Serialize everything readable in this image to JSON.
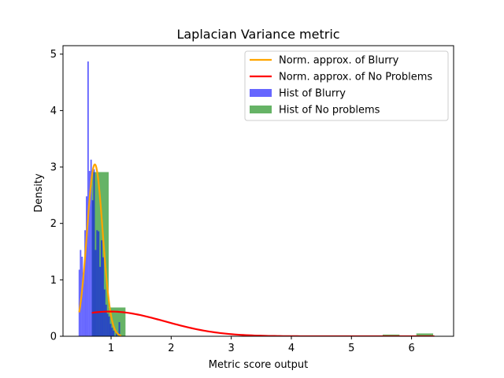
{
  "chart_data": {
    "type": "bar",
    "title": "Laplacian Variance metric",
    "xlabel": "Metric score output",
    "ylabel": "Density",
    "xlim": [
      0.2,
      6.7
    ],
    "ylim": [
      0,
      5.15
    ],
    "xticks": [
      1,
      2,
      3,
      4,
      5,
      6
    ],
    "yticks": [
      0,
      1,
      2,
      3,
      4,
      5
    ],
    "legend_position": "top-right",
    "colors": {
      "blurry_hist": "#0000ff",
      "no_problems_hist": "#008000",
      "blurry_norm": "#ffa500",
      "no_problems_norm": "#ff0000"
    },
    "series": [
      {
        "name": "Hist of No problems",
        "kind": "histogram",
        "alpha": 0.6,
        "bins": [
          {
            "x0": 0.68,
            "x1": 0.96,
            "density": 2.91
          },
          {
            "x0": 0.96,
            "x1": 1.24,
            "density": 0.51
          },
          {
            "x0": 1.24,
            "x1": 5.52,
            "density": 0
          },
          {
            "x0": 5.52,
            "x1": 5.8,
            "density": 0.03
          },
          {
            "x0": 6.08,
            "x1": 6.36,
            "density": 0.05
          }
        ]
      },
      {
        "name": "Hist of Blurry",
        "kind": "histogram",
        "alpha": 0.6,
        "bins": [
          {
            "x0": 0.46,
            "x1": 0.48,
            "density": 1.18
          },
          {
            "x0": 0.48,
            "x1": 0.505,
            "density": 1.53
          },
          {
            "x0": 0.505,
            "x1": 0.53,
            "density": 1.41
          },
          {
            "x0": 0.53,
            "x1": 0.555,
            "density": 1.13
          },
          {
            "x0": 0.555,
            "x1": 0.58,
            "density": 1.88
          },
          {
            "x0": 0.58,
            "x1": 0.605,
            "density": 2.48
          },
          {
            "x0": 0.605,
            "x1": 0.63,
            "density": 4.87
          },
          {
            "x0": 0.63,
            "x1": 0.655,
            "density": 2.93
          },
          {
            "x0": 0.655,
            "x1": 0.68,
            "density": 3.13
          },
          {
            "x0": 0.68,
            "x1": 0.705,
            "density": 2.41
          },
          {
            "x0": 0.705,
            "x1": 0.73,
            "density": 2.96
          },
          {
            "x0": 0.73,
            "x1": 0.755,
            "density": 1.53
          },
          {
            "x0": 0.755,
            "x1": 0.78,
            "density": 1.88
          },
          {
            "x0": 0.78,
            "x1": 0.805,
            "density": 1.86
          },
          {
            "x0": 0.805,
            "x1": 0.83,
            "density": 1.23
          },
          {
            "x0": 0.83,
            "x1": 0.855,
            "density": 1.7
          },
          {
            "x0": 0.855,
            "x1": 0.88,
            "density": 1.4
          },
          {
            "x0": 0.88,
            "x1": 0.905,
            "density": 0.83
          },
          {
            "x0": 0.905,
            "x1": 0.93,
            "density": 0.56
          },
          {
            "x0": 0.93,
            "x1": 0.955,
            "density": 0.4
          },
          {
            "x0": 0.955,
            "x1": 0.98,
            "density": 0.35
          },
          {
            "x0": 0.98,
            "x1": 1.005,
            "density": 0.22
          },
          {
            "x0": 1.005,
            "x1": 1.03,
            "density": 0.15
          },
          {
            "x0": 1.03,
            "x1": 1.055,
            "density": 0.1
          },
          {
            "x0": 1.08,
            "x1": 1.105,
            "density": 0.08
          },
          {
            "x0": 1.125,
            "x1": 1.15,
            "density": 0.25
          }
        ]
      },
      {
        "name": "Norm. approx. of Blurry",
        "kind": "line",
        "mean": 0.73,
        "std": 0.131,
        "x_range": [
          0.47,
          1.17
        ]
      },
      {
        "name": "Norm. approx. of No Problems",
        "kind": "line",
        "mean": 0.98,
        "std": 0.91,
        "x_range": [
          0.68,
          6.38
        ]
      }
    ],
    "legend": [
      "Norm. approx. of Blurry",
      "Norm. approx. of No Problems",
      "Hist of Blurry",
      "Hist of No problems"
    ]
  }
}
